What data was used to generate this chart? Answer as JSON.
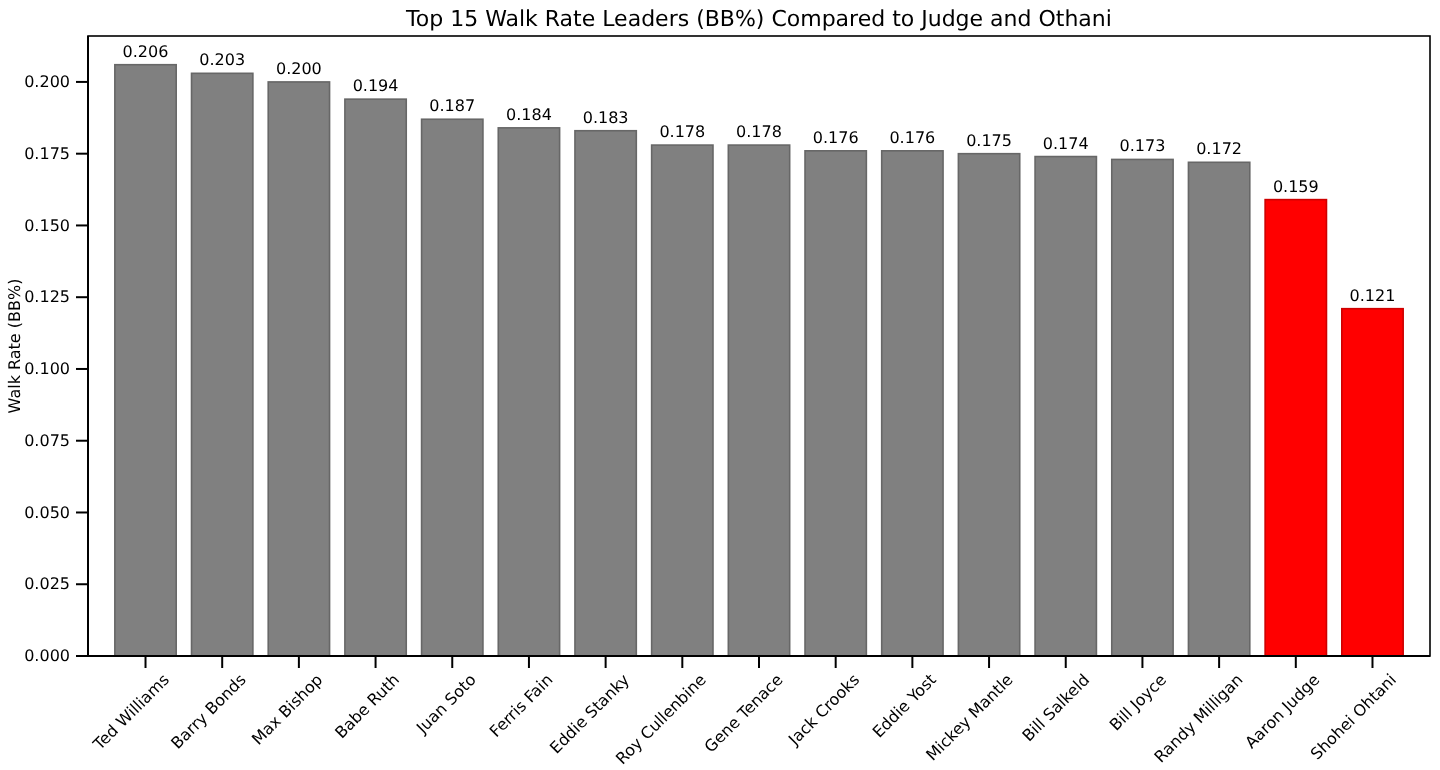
{
  "chart_data": {
    "type": "bar",
    "title": "Top 15 Walk Rate Leaders (BB%) Compared to Judge and Othani",
    "ylabel": "Walk Rate (BB%)",
    "categories": [
      "Ted Williams",
      "Barry Bonds",
      "Max Bishop",
      "Babe Ruth",
      "Juan Soto",
      "Ferris Fain",
      "Eddie Stanky",
      "Roy Cullenbine",
      "Gene Tenace",
      "Jack Crooks",
      "Eddie Yost",
      "Mickey Mantle",
      "Bill Salkeld",
      "Bill Joyce",
      "Randy Milligan",
      "Aaron Judge",
      "Shohei Ohtani"
    ],
    "values": [
      0.206,
      0.203,
      0.2,
      0.194,
      0.187,
      0.184,
      0.183,
      0.178,
      0.178,
      0.176,
      0.176,
      0.175,
      0.174,
      0.173,
      0.172,
      0.159,
      0.121
    ],
    "value_labels": [
      "0.206",
      "0.203",
      "0.200",
      "0.194",
      "0.187",
      "0.184",
      "0.183",
      "0.178",
      "0.178",
      "0.176",
      "0.176",
      "0.175",
      "0.174",
      "0.173",
      "0.172",
      "0.159",
      "0.121"
    ],
    "colors": [
      "#808080",
      "#808080",
      "#808080",
      "#808080",
      "#808080",
      "#808080",
      "#808080",
      "#808080",
      "#808080",
      "#808080",
      "#808080",
      "#808080",
      "#808080",
      "#808080",
      "#808080",
      "#ff0000",
      "#ff0000"
    ],
    "ylim": [
      0,
      0.216
    ],
    "yticks": [
      {
        "value": 0,
        "label": "0.000"
      },
      {
        "value": 0.025,
        "label": "0.025"
      },
      {
        "value": 0.05,
        "label": "0.050"
      },
      {
        "value": 0.075,
        "label": "0.075"
      },
      {
        "value": 0.1,
        "label": "0.100"
      },
      {
        "value": 0.125,
        "label": "0.125"
      },
      {
        "value": 0.15,
        "label": "0.150"
      },
      {
        "value": 0.175,
        "label": "0.175"
      },
      {
        "value": 0.2,
        "label": "0.200"
      }
    ],
    "tick_labels": true
  }
}
